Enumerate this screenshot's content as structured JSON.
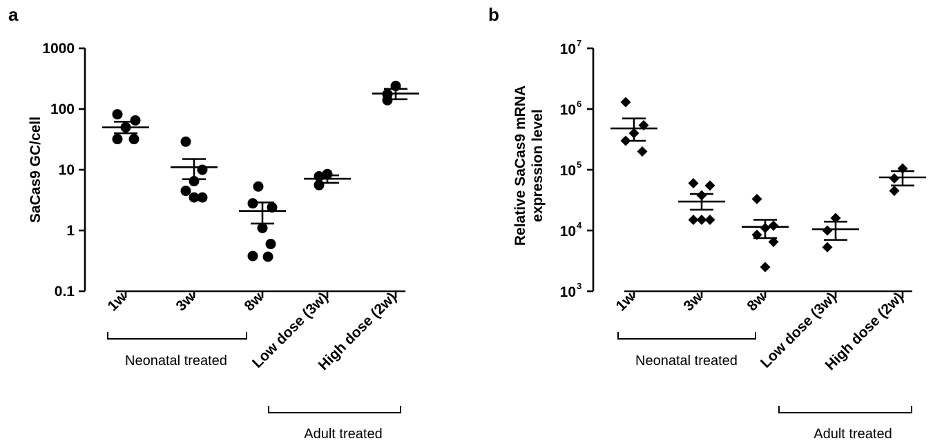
{
  "chart_data": [
    {
      "panel": "a",
      "type": "scatter",
      "ylabel": "SaCas9 GC/cell",
      "yscale": "log",
      "ylim": [
        0.1,
        1000
      ],
      "yticks": [
        {
          "value": 0.1,
          "label": "0.1"
        },
        {
          "value": 1,
          "label": "1"
        },
        {
          "value": 10,
          "label": "10"
        },
        {
          "value": 100,
          "label": "100"
        },
        {
          "value": 1000,
          "label": "1000"
        }
      ],
      "marker": "circle",
      "categories": [
        "1w",
        "3w",
        "8w",
        "Low dose (3w)",
        "High dose (2w)"
      ],
      "groups": [
        {
          "label": "Neonatal treated",
          "from": 0,
          "to": 2
        },
        {
          "label": "Adult treated",
          "from": 3,
          "to": 4
        }
      ],
      "series": [
        {
          "category": "1w",
          "points": [
            82,
            65,
            50,
            32,
            32
          ],
          "mean": 50,
          "sem": [
            40,
            62
          ]
        },
        {
          "category": "3w",
          "points": [
            29,
            10,
            6.5,
            4.5,
            3.5,
            3.5
          ],
          "mean": 11,
          "sem": [
            7,
            15
          ]
        },
        {
          "category": "8w",
          "points": [
            5.3,
            2.8,
            2.4,
            1.1,
            0.6,
            0.38,
            0.37
          ],
          "mean": 2.1,
          "sem": [
            1.3,
            2.9
          ]
        },
        {
          "category": "Low dose (3w)",
          "points": [
            8.5,
            7.8,
            5.6
          ],
          "mean": 7.1,
          "sem": [
            6.1,
            8.1
          ]
        },
        {
          "category": "High dose (2w)",
          "points": [
            240,
            175,
            140
          ],
          "mean": 180,
          "sem": [
            145,
            215
          ]
        }
      ]
    },
    {
      "panel": "b",
      "type": "scatter",
      "ylabel_lines": [
        "Relative SaCas9 mRNA",
        "expression level"
      ],
      "yscale": "log",
      "ylim": [
        1000,
        10000000
      ],
      "yticks": [
        {
          "value": 1000,
          "base": "10",
          "exp": "3"
        },
        {
          "value": 10000,
          "base": "10",
          "exp": "4"
        },
        {
          "value": 100000,
          "base": "10",
          "exp": "5"
        },
        {
          "value": 1000000,
          "base": "10",
          "exp": "6"
        },
        {
          "value": 10000000,
          "base": "10",
          "exp": "7"
        }
      ],
      "marker": "diamond",
      "categories": [
        "1w",
        "3w",
        "8w",
        "Low dose (3w)",
        "High dose (2w)"
      ],
      "groups": [
        {
          "label": "Neonatal treated",
          "from": 0,
          "to": 2
        },
        {
          "label": "Adult treated",
          "from": 3,
          "to": 4
        }
      ],
      "series": [
        {
          "category": "1w",
          "points": [
            1300000,
            540000,
            400000,
            300000,
            200000
          ],
          "mean": 480000,
          "sem": [
            300000,
            700000
          ]
        },
        {
          "category": "3w",
          "points": [
            60000,
            55000,
            38000,
            15000,
            15000,
            15000
          ],
          "mean": 30000,
          "sem": [
            22000,
            40000
          ]
        },
        {
          "category": "8w",
          "points": [
            33000,
            12000,
            11000,
            8500,
            6500,
            2500
          ],
          "mean": 11500,
          "sem": [
            7500,
            15000
          ]
        },
        {
          "category": "Low dose (3w)",
          "points": [
            16000,
            10000,
            5300
          ],
          "mean": 10500,
          "sem": [
            7000,
            14000
          ]
        },
        {
          "category": "High dose (2w)",
          "points": [
            105000,
            72000,
            45000
          ],
          "mean": 75000,
          "sem": [
            55000,
            95000
          ]
        }
      ]
    }
  ]
}
